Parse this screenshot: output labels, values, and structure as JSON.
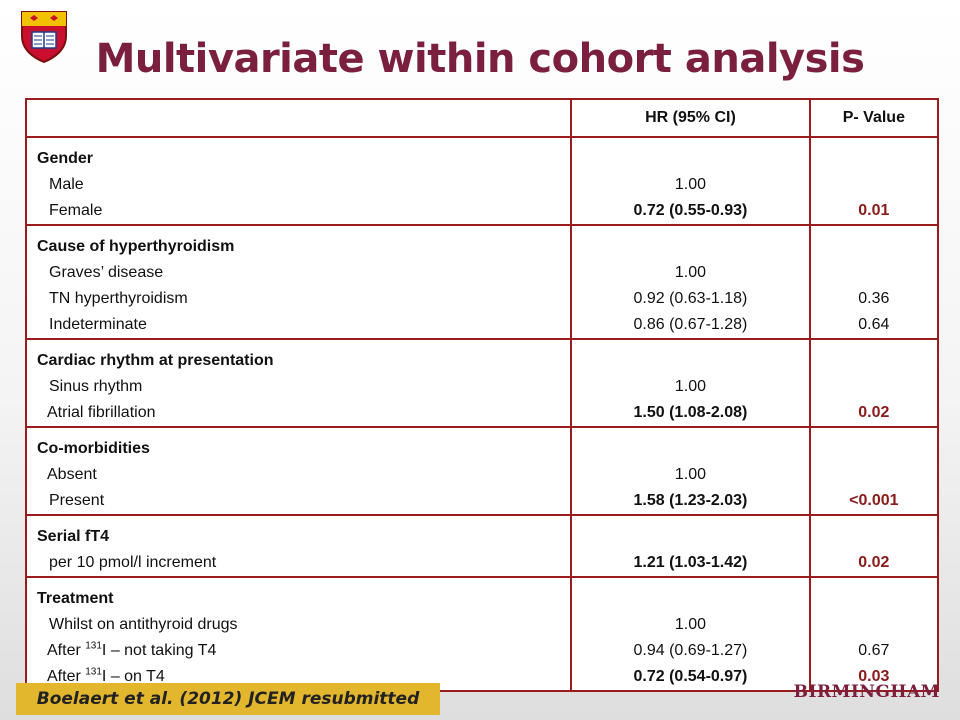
{
  "title": "Multivariate within cohort analysis",
  "logo": {
    "icon": "university-crest-icon",
    "colors": [
      "#c8102e",
      "#f2c200",
      "#1e3a8a"
    ]
  },
  "table": {
    "headers": [
      "",
      "HR (95% CI)",
      "P- Value"
    ],
    "groups": [
      {
        "heading": "Gender",
        "rows": [
          {
            "label": "Male",
            "hr": "1.00",
            "p": ""
          },
          {
            "label": "Female",
            "hr": "0.72 (0.55-0.93)",
            "p": "0.01"
          }
        ]
      },
      {
        "heading": "Cause of hyperthyroidism",
        "rows": [
          {
            "label": "Graves’ disease",
            "hr": "1.00",
            "p": ""
          },
          {
            "label": "TN hyperthyroidism",
            "hr": "0.92 (0.63-1.18)",
            "p": "0.36"
          },
          {
            "label": "Indeterminate",
            "hr": "0.86 (0.67-1.28)",
            "p": "0.64"
          }
        ]
      },
      {
        "heading": "Cardiac rhythm at presentation",
        "rows": [
          {
            "label": "Sinus rhythm",
            "hr": "1.00",
            "p": ""
          },
          {
            "label": "Atrial fibrillation",
            "hr": "1.50 (1.08-2.08)",
            "p": "0.02"
          }
        ]
      },
      {
        "heading": "Co-morbidities",
        "rows": [
          {
            "label": "Absent",
            "hr": "1.00",
            "p": ""
          },
          {
            "label": "Present",
            "hr": "1.58 (1.23-2.03)",
            "p": "<0.001"
          }
        ]
      },
      {
        "heading": "Serial fT4",
        "rows": [
          {
            "label": "per 10 pmol/l increment",
            "hr": "1.21 (1.03-1.42)",
            "p": "0.02"
          }
        ]
      },
      {
        "heading": "Treatment",
        "rows": [
          {
            "label": "Whilst on antithyroid drugs",
            "hr": "1.00",
            "p": ""
          },
          {
            "label_pre": "After ",
            "label_sup": "131",
            "label_post": "I – not taking T4",
            "hr": "0.94 (0.69-1.27)",
            "p": "0.67"
          },
          {
            "label_pre": "After ",
            "label_sup": "131",
            "label_post": "I – on T4",
            "hr": "0.72 (0.54-0.97)",
            "p": "0.03"
          }
        ]
      }
    ]
  },
  "citation": "Boelaert et al. (2012) JCEM resubmitted",
  "brand": "BIRMINGHAM",
  "colors": {
    "title": "#7a1f3d",
    "border": "#9b1c1c",
    "citation_bg": "#e3b72d"
  }
}
